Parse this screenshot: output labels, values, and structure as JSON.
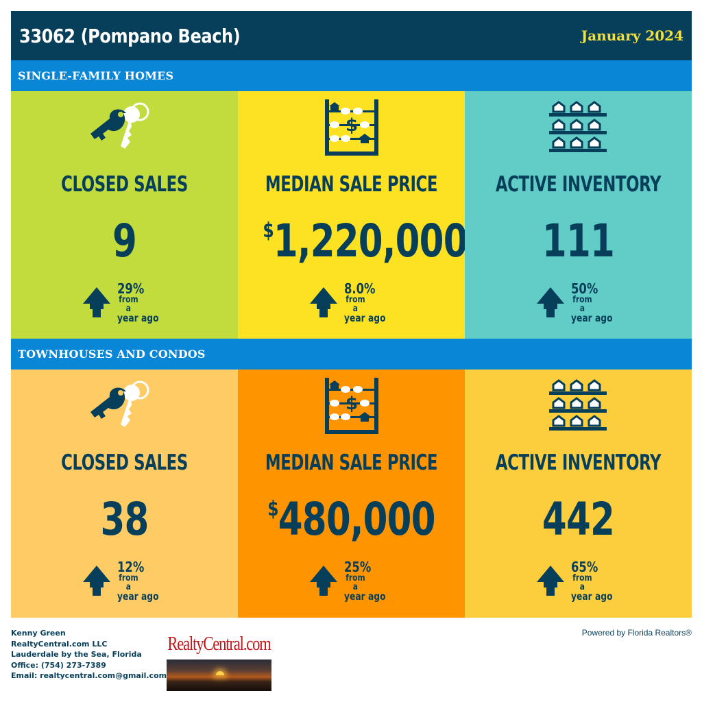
{
  "header": {
    "title": "33062 (Pompano Beach)",
    "date": "January 2024"
  },
  "colors": {
    "navy": "#073f5a",
    "blue_bar": "#0a86d6",
    "yellow_text": "#f4e03a",
    "sf_card1": "#c1dc3c",
    "sf_card2": "#fde224",
    "sf_card3": "#62ccc6",
    "tc_card1": "#fecb64",
    "tc_card2": "#fe9400",
    "tc_card3": "#fcce3e"
  },
  "sections": [
    {
      "label": "SINGLE-FAMILY HOMES",
      "cards": [
        {
          "icon": "keys-icon",
          "label": "CLOSED SALES",
          "currency": "",
          "value": "9",
          "change_pct": "29%",
          "change_from": "from a",
          "change_when": "year ago"
        },
        {
          "icon": "abacus-icon",
          "label": "MEDIAN SALE PRICE",
          "currency": "$",
          "value": "1,220,000",
          "change_pct": "8.0%",
          "change_from": "from a",
          "change_when": "year ago"
        },
        {
          "icon": "houses-icon",
          "label": "ACTIVE INVENTORY",
          "currency": "",
          "value": "111",
          "change_pct": "50%",
          "change_from": "from a",
          "change_when": "year ago"
        }
      ]
    },
    {
      "label": "TOWNHOUSES AND CONDOS",
      "cards": [
        {
          "icon": "keys-icon",
          "label": "CLOSED SALES",
          "currency": "",
          "value": "38",
          "change_pct": "12%",
          "change_from": "from a",
          "change_when": "year ago"
        },
        {
          "icon": "abacus-icon",
          "label": "MEDIAN SALE PRICE",
          "currency": "$",
          "value": "480,000",
          "change_pct": "25%",
          "change_from": "from a",
          "change_when": "year ago"
        },
        {
          "icon": "houses-icon",
          "label": "ACTIVE INVENTORY",
          "currency": "",
          "value": "442",
          "change_pct": "65%",
          "change_from": "from a",
          "change_when": "year ago"
        }
      ]
    }
  ],
  "footer": {
    "agent_name": "Kenny Green",
    "company": "RealtyCentral.com LLC",
    "location": "Lauderdale by the Sea, Florida",
    "office": "Office: (754) 273-7389",
    "email": "Email: realtycentral.com@gmail.com",
    "logo_text": "RealtyCentral.com",
    "powered_by": "Powered by Florida Realtors®"
  }
}
